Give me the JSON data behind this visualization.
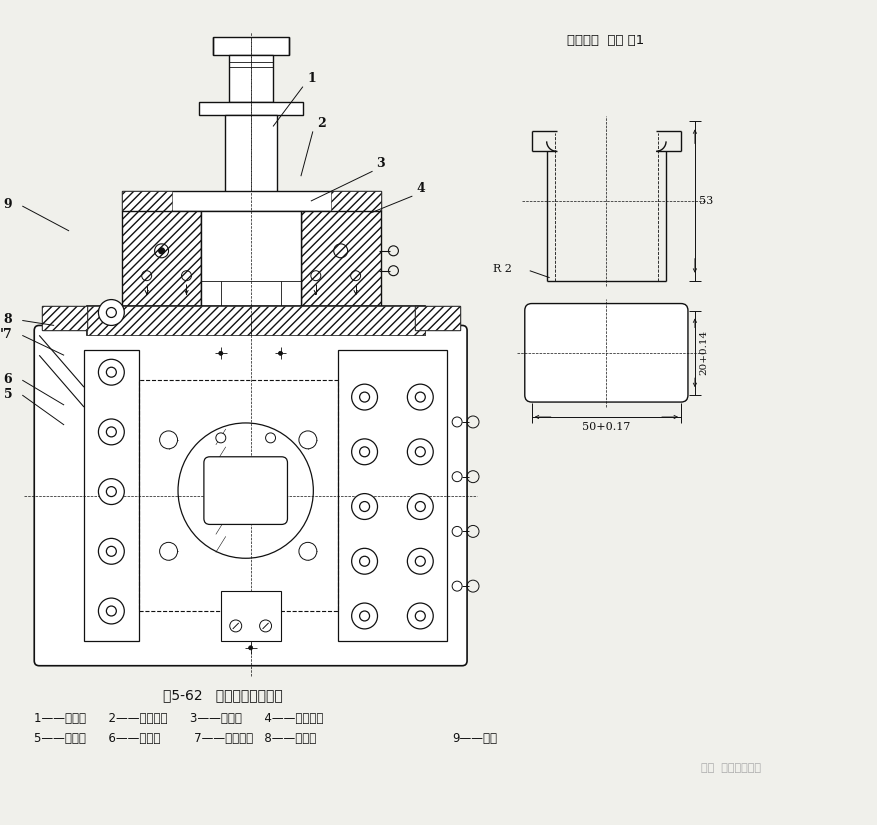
{
  "bg_color": "#f0f0eb",
  "line_color": "#111111",
  "white": "#ffffff",
  "title": "图5-62   移动式凹模拉伸模",
  "part_label": "制件材料  黄铜 厚1",
  "legend_line1": "1——凸模；      2——定位板；      3——托板；      4——固定板；",
  "legend_line2": "5——接套；      6——手把；         7——刮料板；   8——导板；",
  "dim_53": "53",
  "dim_r2": "R 2",
  "dim_20": "20+0.14",
  "dim_50": "50+0.17",
  "watermark": "知乎  冲压模具设计"
}
